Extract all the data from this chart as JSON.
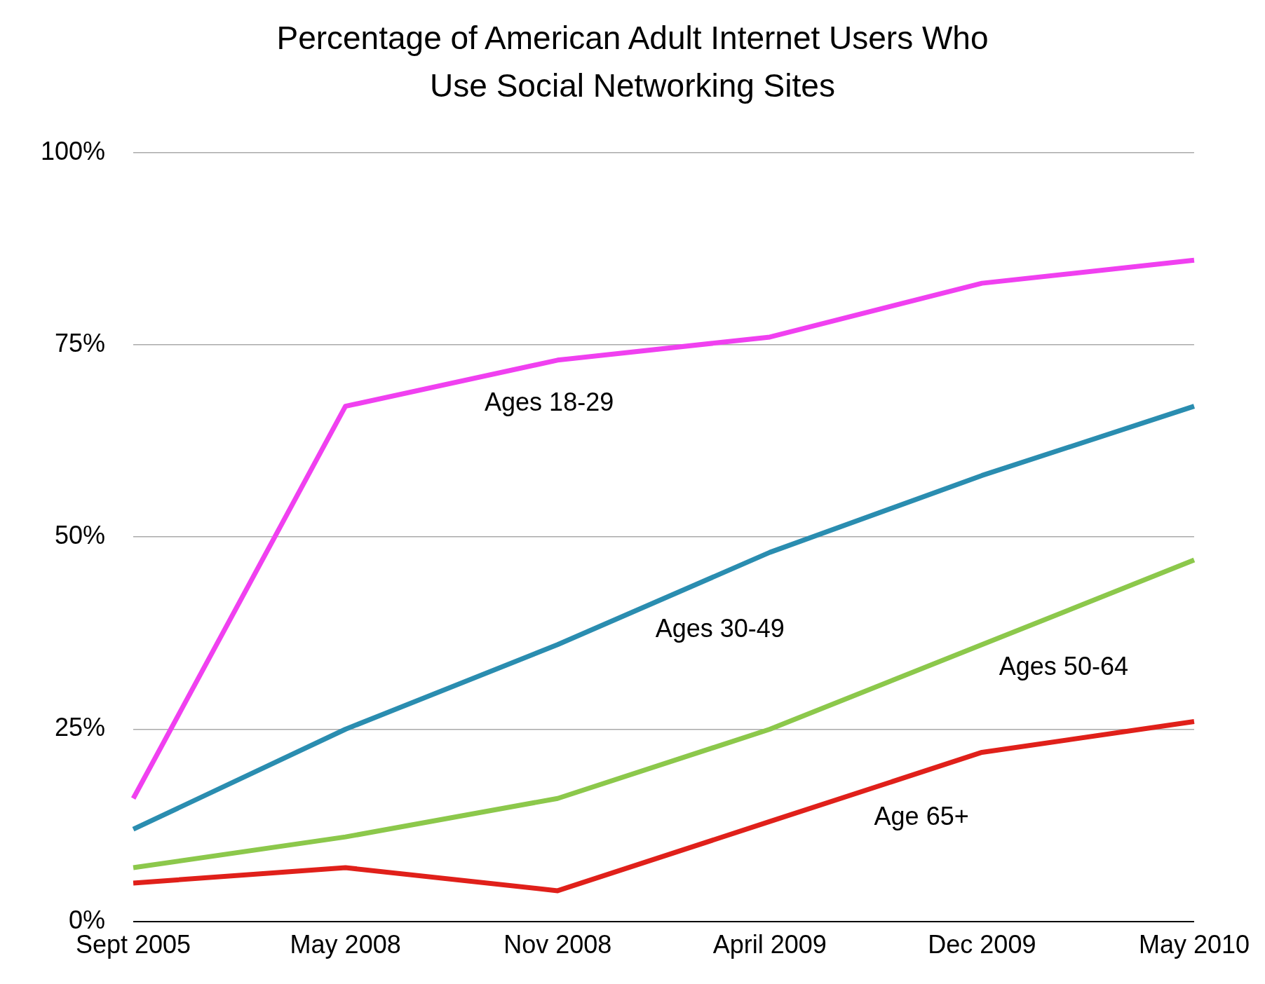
{
  "chart_data": {
    "type": "line",
    "title": "Percentage of American Adult Internet Users Who Use Social Networking Sites",
    "categories": [
      "Sept 2005",
      "May 2008",
      "Nov 2008",
      "April 2009",
      "Dec 2009",
      "May 2010"
    ],
    "series": [
      {
        "name": "Ages 18-29",
        "color": "#f040f0",
        "values": [
          16,
          67,
          73,
          76,
          83,
          86
        ]
      },
      {
        "name": "Ages 30-49",
        "color": "#2a8db0",
        "values": [
          12,
          25,
          36,
          48,
          58,
          67
        ]
      },
      {
        "name": "Ages 50-64",
        "color": "#8cc84b",
        "values": [
          7,
          11,
          16,
          25,
          36,
          47
        ]
      },
      {
        "name": "Age 65+",
        "color": "#e0201a",
        "values": [
          5,
          7,
          4,
          13,
          22,
          26
        ]
      }
    ],
    "ylim": [
      0,
      100
    ],
    "yticks": [
      {
        "value": 0,
        "label": "0%"
      },
      {
        "value": 25,
        "label": "25%"
      },
      {
        "value": 50,
        "label": "50%"
      },
      {
        "value": 75,
        "label": "75%"
      },
      {
        "value": 100,
        "label": "100%"
      }
    ],
    "grid": "y",
    "legend": false,
    "marker": "none",
    "line_style": "solid"
  }
}
